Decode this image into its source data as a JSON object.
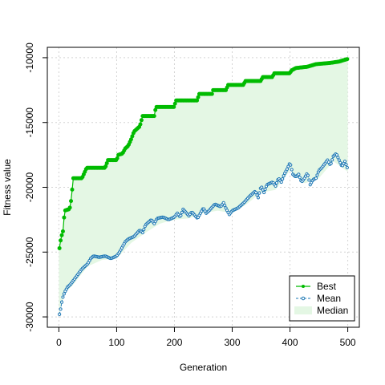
{
  "chart_data": {
    "type": "line",
    "title": "",
    "xlabel": "Generation",
    "ylabel": "Fitness value",
    "xlim": [
      0,
      500
    ],
    "ylim": [
      -30000,
      -10000
    ],
    "x_ticks": [
      0,
      100,
      200,
      300,
      400,
      500
    ],
    "x_tick_labels": [
      "0",
      "100",
      "200",
      "300",
      "400",
      "500"
    ],
    "y_ticks": [
      -30000,
      -25000,
      -20000,
      -15000,
      -10000
    ],
    "y_tick_labels": [
      "-30000",
      "-25000",
      "-20000",
      "-15000",
      "-10000"
    ],
    "grid": true,
    "legend_position": "bottom-right",
    "colors": {
      "best": "#00BB00",
      "mean": "#1E78B4",
      "median_fill": "#E4F7E4"
    },
    "legend": [
      {
        "key": "best",
        "label": "Best",
        "style": "solid line with filled circles"
      },
      {
        "key": "mean",
        "label": "Mean",
        "style": "dashed line with open circles"
      },
      {
        "key": "median",
        "label": "Median",
        "style": "filled band"
      }
    ],
    "series": [
      {
        "name": "Best",
        "key": "best",
        "points": [
          [
            1,
            -24700
          ],
          [
            3,
            -24100
          ],
          [
            5,
            -23700
          ],
          [
            7,
            -23400
          ],
          [
            10,
            -21800
          ],
          [
            17,
            -21700
          ],
          [
            20,
            -21500
          ],
          [
            25,
            -19300
          ],
          [
            40,
            -19300
          ],
          [
            48,
            -18500
          ],
          [
            80,
            -18500
          ],
          [
            85,
            -17900
          ],
          [
            100,
            -17900
          ],
          [
            103,
            -17500
          ],
          [
            110,
            -17400
          ],
          [
            115,
            -17000
          ],
          [
            120,
            -16800
          ],
          [
            125,
            -16300
          ],
          [
            130,
            -15700
          ],
          [
            140,
            -15300
          ],
          [
            145,
            -14500
          ],
          [
            165,
            -14500
          ],
          [
            168,
            -13800
          ],
          [
            200,
            -13800
          ],
          [
            202,
            -13300
          ],
          [
            240,
            -13300
          ],
          [
            242,
            -12800
          ],
          [
            265,
            -12800
          ],
          [
            267,
            -12500
          ],
          [
            290,
            -12500
          ],
          [
            292,
            -12100
          ],
          [
            320,
            -12100
          ],
          [
            322,
            -11800
          ],
          [
            350,
            -11800
          ],
          [
            352,
            -11500
          ],
          [
            370,
            -11500
          ],
          [
            372,
            -11200
          ],
          [
            400,
            -11200
          ],
          [
            402,
            -11000
          ],
          [
            410,
            -10800
          ],
          [
            430,
            -10700
          ],
          [
            445,
            -10500
          ],
          [
            470,
            -10400
          ],
          [
            485,
            -10300
          ],
          [
            492,
            -10200
          ],
          [
            500,
            -10100
          ]
        ]
      },
      {
        "name": "Mean",
        "key": "mean",
        "points": [
          [
            1,
            -29800
          ],
          [
            3,
            -29400
          ],
          [
            6,
            -28600
          ],
          [
            10,
            -28100
          ],
          [
            15,
            -27700
          ],
          [
            20,
            -27500
          ],
          [
            25,
            -27200
          ],
          [
            30,
            -26900
          ],
          [
            40,
            -26300
          ],
          [
            50,
            -25900
          ],
          [
            55,
            -25500
          ],
          [
            60,
            -25300
          ],
          [
            70,
            -25400
          ],
          [
            80,
            -25300
          ],
          [
            90,
            -25500
          ],
          [
            100,
            -25300
          ],
          [
            105,
            -25000
          ],
          [
            110,
            -24600
          ],
          [
            115,
            -24200
          ],
          [
            120,
            -24000
          ],
          [
            130,
            -23800
          ],
          [
            140,
            -23300
          ],
          [
            145,
            -23500
          ],
          [
            150,
            -22900
          ],
          [
            160,
            -22500
          ],
          [
            165,
            -22800
          ],
          [
            170,
            -22400
          ],
          [
            180,
            -22300
          ],
          [
            190,
            -22500
          ],
          [
            200,
            -22300
          ],
          [
            205,
            -22000
          ],
          [
            210,
            -22300
          ],
          [
            215,
            -21700
          ],
          [
            225,
            -22200
          ],
          [
            230,
            -21900
          ],
          [
            240,
            -22400
          ],
          [
            250,
            -21600
          ],
          [
            255,
            -22000
          ],
          [
            260,
            -21800
          ],
          [
            270,
            -21300
          ],
          [
            280,
            -21500
          ],
          [
            285,
            -21200
          ],
          [
            290,
            -21700
          ],
          [
            295,
            -22100
          ],
          [
            300,
            -21800
          ],
          [
            310,
            -21600
          ],
          [
            320,
            -21200
          ],
          [
            330,
            -20700
          ],
          [
            340,
            -20300
          ],
          [
            345,
            -20800
          ],
          [
            350,
            -19900
          ],
          [
            355,
            -20400
          ],
          [
            360,
            -19800
          ],
          [
            370,
            -19600
          ],
          [
            375,
            -19900
          ],
          [
            380,
            -19300
          ],
          [
            385,
            -19600
          ],
          [
            390,
            -19000
          ],
          [
            395,
            -18600
          ],
          [
            400,
            -18100
          ],
          [
            405,
            -19000
          ],
          [
            410,
            -19200
          ],
          [
            415,
            -19000
          ],
          [
            420,
            -19600
          ],
          [
            425,
            -19300
          ],
          [
            430,
            -18900
          ],
          [
            435,
            -19800
          ],
          [
            440,
            -19400
          ],
          [
            445,
            -19300
          ],
          [
            450,
            -18700
          ],
          [
            455,
            -18500
          ],
          [
            460,
            -18200
          ],
          [
            465,
            -17900
          ],
          [
            470,
            -18300
          ],
          [
            475,
            -17600
          ],
          [
            480,
            -17400
          ],
          [
            485,
            -17900
          ],
          [
            490,
            -18400
          ],
          [
            495,
            -18000
          ],
          [
            500,
            -18600
          ]
        ]
      },
      {
        "name": "Median",
        "key": "median",
        "points": [
          [
            0,
            -29800
          ],
          [
            10,
            -28200
          ],
          [
            25,
            -27500
          ],
          [
            50,
            -26100
          ],
          [
            75,
            -25600
          ],
          [
            100,
            -25500
          ],
          [
            125,
            -24300
          ],
          [
            150,
            -23500
          ],
          [
            175,
            -22800
          ],
          [
            200,
            -22500
          ],
          [
            225,
            -22400
          ],
          [
            250,
            -22000
          ],
          [
            275,
            -21800
          ],
          [
            300,
            -22000
          ],
          [
            325,
            -21300
          ],
          [
            350,
            -20400
          ],
          [
            375,
            -20200
          ],
          [
            400,
            -18700
          ],
          [
            425,
            -19700
          ],
          [
            450,
            -19300
          ],
          [
            475,
            -18000
          ],
          [
            500,
            -18800
          ]
        ]
      }
    ]
  }
}
